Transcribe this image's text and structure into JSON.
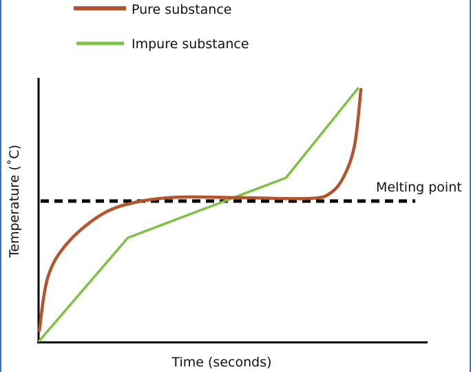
{
  "chart_data": {
    "type": "line",
    "title": "",
    "xlabel": "Time (seconds)",
    "ylabel": "Temperature (˚C)",
    "xlim": [
      0,
      100
    ],
    "ylim": [
      0,
      100
    ],
    "grid": false,
    "legend_position": "top",
    "series": [
      {
        "name": "Pure substance",
        "color": "#b5532a",
        "x": [
          0.2,
          2.5,
          7.8,
          16.7,
          25.5,
          36.2,
          52,
          69.9,
          75.2,
          78.7,
          81.4,
          83
        ],
        "y": [
          4.2,
          25,
          38,
          48.6,
          53,
          54.8,
          54.6,
          54.3,
          56.4,
          62.9,
          74.7,
          95.6
        ]
      },
      {
        "name": "Impure substance",
        "color": "#7dc242",
        "x": [
          0,
          23,
          63.7,
          82.4
        ],
        "y": [
          0,
          39.4,
          62.1,
          96.3
        ]
      }
    ],
    "annotations": [
      {
        "label": "Melting point",
        "type": "dashed-hline",
        "y": 53.3,
        "x_range": [
          0,
          97
        ]
      }
    ]
  }
}
